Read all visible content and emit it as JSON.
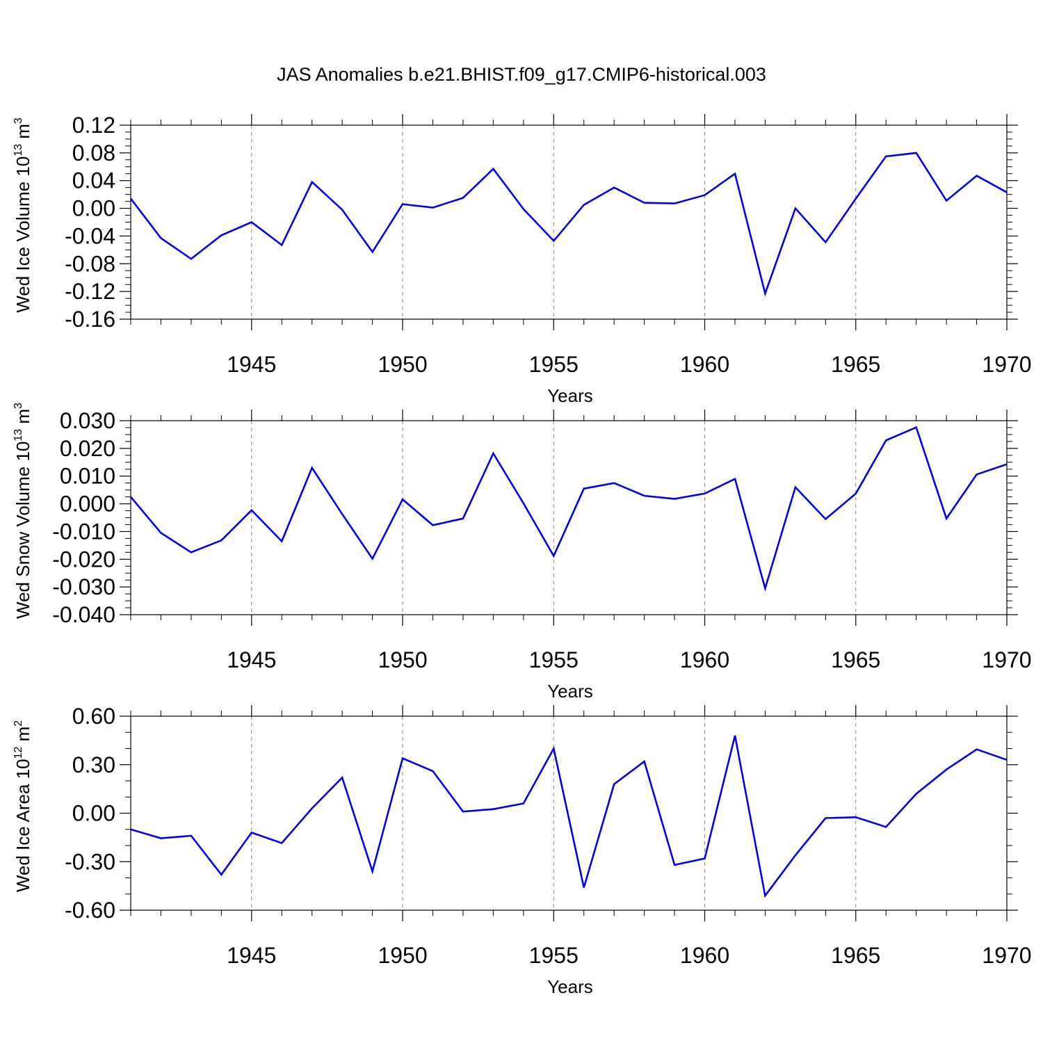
{
  "title": "JAS Anomalies b.e21.BHIST.f09_g17.CMIP6-historical.003",
  "chart_data": [
    {
      "type": "line",
      "ylabel": "Wed Ice Volume 10",
      "ylabel_exp": "13",
      "ylabel_unit": " m",
      "ylabel_unit_exp": "3",
      "xlabel": "Years",
      "xlim": [
        1941,
        1970
      ],
      "ylim": [
        -0.16,
        0.12
      ],
      "yticks": [
        "0.12",
        "0.08",
        "0.04",
        "0.00",
        "-0.04",
        "-0.08",
        "-0.12",
        "-0.16"
      ],
      "ytick_values": [
        0.12,
        0.08,
        0.04,
        0.0,
        -0.04,
        -0.08,
        -0.12,
        -0.16
      ],
      "yminor_step": 0.01,
      "xticks": [
        "1945",
        "1950",
        "1955",
        "1960",
        "1965",
        "1970"
      ],
      "xtick_values": [
        1945,
        1950,
        1955,
        1960,
        1965,
        1970
      ],
      "grid": "vertical dashed at major x ticks",
      "line_color": "#0000ee",
      "x": [
        1941,
        1942,
        1943,
        1944,
        1945,
        1946,
        1947,
        1948,
        1949,
        1950,
        1951,
        1952,
        1953,
        1954,
        1955,
        1956,
        1957,
        1958,
        1959,
        1960,
        1961,
        1962,
        1963,
        1964,
        1965,
        1966,
        1967,
        1968,
        1969,
        1970
      ],
      "y": [
        0.014,
        -0.043,
        -0.073,
        -0.039,
        -0.02,
        -0.053,
        0.038,
        -0.002,
        -0.063,
        0.006,
        0.001,
        0.015,
        0.057,
        -0.001,
        -0.047,
        0.005,
        0.03,
        0.008,
        0.007,
        0.019,
        0.05,
        -0.123,
        0.0,
        -0.049,
        0.014,
        0.075,
        0.08,
        0.011,
        0.047,
        0.023
      ]
    },
    {
      "type": "line",
      "ylabel": "Wed Snow Volume 10",
      "ylabel_exp": "13",
      "ylabel_unit": " m",
      "ylabel_unit_exp": "3",
      "xlabel": "Years",
      "xlim": [
        1941,
        1970
      ],
      "ylim": [
        -0.04,
        0.03
      ],
      "yticks": [
        "0.030",
        "0.020",
        "0.010",
        "0.000",
        "-0.010",
        "-0.020",
        "-0.030",
        "-0.040"
      ],
      "ytick_values": [
        0.03,
        0.02,
        0.01,
        0.0,
        -0.01,
        -0.02,
        -0.03,
        -0.04
      ],
      "yminor_step": 0.0025,
      "xticks": [
        "1945",
        "1950",
        "1955",
        "1960",
        "1965",
        "1970"
      ],
      "xtick_values": [
        1945,
        1950,
        1955,
        1960,
        1965,
        1970
      ],
      "grid": "vertical dashed at major x ticks",
      "line_color": "#0000ee",
      "x": [
        1941,
        1942,
        1943,
        1944,
        1945,
        1946,
        1947,
        1948,
        1949,
        1950,
        1951,
        1952,
        1953,
        1954,
        1955,
        1956,
        1957,
        1958,
        1959,
        1960,
        1961,
        1962,
        1963,
        1964,
        1965,
        1966,
        1967,
        1968,
        1969,
        1970
      ],
      "y": [
        0.0025,
        -0.0105,
        -0.0175,
        -0.0132,
        -0.0023,
        -0.0135,
        0.013,
        -0.0037,
        -0.0198,
        0.0016,
        -0.0077,
        -0.0053,
        0.0182,
        0.0002,
        -0.0188,
        0.0055,
        0.0075,
        0.0029,
        0.0018,
        0.0037,
        0.009,
        -0.0305,
        0.006,
        -0.0055,
        0.0037,
        0.0229,
        0.0276,
        -0.0053,
        0.0106,
        0.0143
      ]
    },
    {
      "type": "line",
      "ylabel": "Wed Ice Area 10",
      "ylabel_exp": "12",
      "ylabel_unit": " m",
      "ylabel_unit_exp": "2",
      "xlabel": "Years",
      "xlim": [
        1941,
        1970
      ],
      "ylim": [
        -0.6,
        0.6
      ],
      "yticks": [
        "0.60",
        "0.30",
        "0.00",
        "-0.30",
        "-0.60"
      ],
      "ytick_values": [
        0.6,
        0.3,
        0.0,
        -0.3,
        -0.6
      ],
      "yminor_step": 0.1,
      "xticks": [
        "1945",
        "1950",
        "1955",
        "1960",
        "1965",
        "1970"
      ],
      "xtick_values": [
        1945,
        1950,
        1955,
        1960,
        1965,
        1970
      ],
      "grid": "vertical dashed at major x ticks",
      "line_color": "#0000ee",
      "x": [
        1941,
        1942,
        1943,
        1944,
        1945,
        1946,
        1947,
        1948,
        1949,
        1950,
        1951,
        1952,
        1953,
        1954,
        1955,
        1956,
        1957,
        1958,
        1959,
        1960,
        1961,
        1962,
        1963,
        1964,
        1965,
        1966,
        1967,
        1968,
        1969,
        1970
      ],
      "y": [
        -0.1,
        -0.155,
        -0.14,
        -0.38,
        -0.12,
        -0.185,
        0.03,
        0.22,
        -0.36,
        0.34,
        0.26,
        0.01,
        0.025,
        0.06,
        0.4,
        -0.46,
        0.18,
        0.32,
        -0.32,
        -0.28,
        0.48,
        -0.51,
        -0.26,
        -0.03,
        -0.025,
        -0.085,
        0.12,
        0.27,
        0.395,
        0.33
      ]
    }
  ]
}
